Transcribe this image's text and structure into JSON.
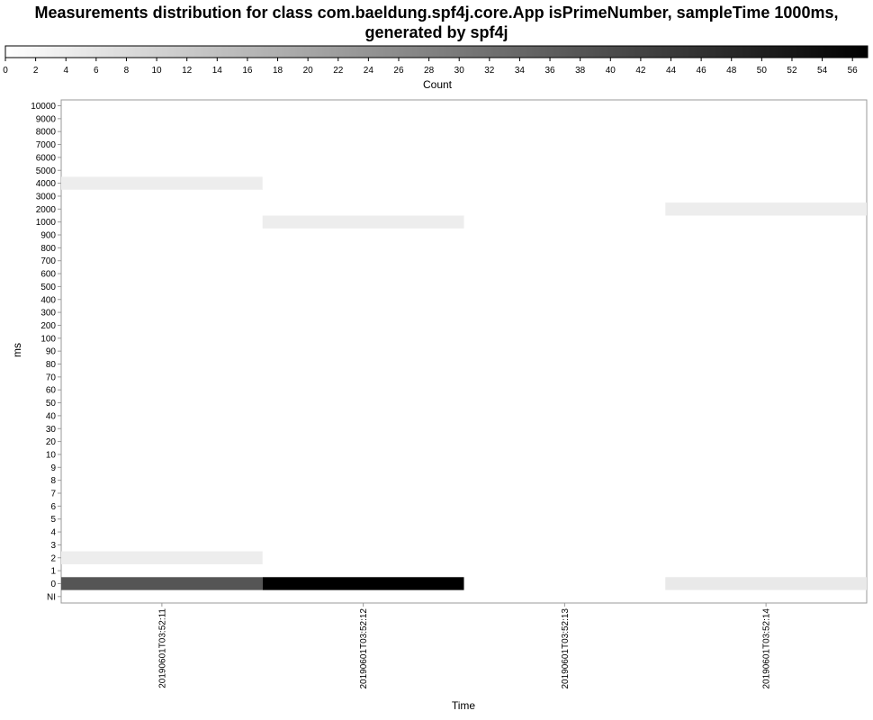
{
  "chart_data": {
    "type": "heatmap",
    "title_line1": "Measurements distribution for class com.baeldung.spf4j.core.App isPrimeNumber, sampleTime 1000ms,",
    "title_line2": "generated by spf4j",
    "xlabel": "Time",
    "ylabel": "ms",
    "colorbar": {
      "label": "Count",
      "min": 0,
      "max": 57,
      "ticks": [
        0,
        2,
        4,
        6,
        8,
        10,
        12,
        14,
        16,
        18,
        20,
        22,
        24,
        26,
        28,
        30,
        32,
        34,
        36,
        38,
        40,
        42,
        44,
        46,
        48,
        50,
        52,
        54,
        56
      ],
      "low_color": "#ffffff",
      "high_color": "#000000"
    },
    "x_categories": [
      "20190601T03:52:11",
      "20190601T03:52:12",
      "20190601T03:52:13",
      "20190601T03:52:14"
    ],
    "y_categories": [
      "NI",
      "0",
      "1",
      "2",
      "3",
      "4",
      "5",
      "6",
      "7",
      "8",
      "9",
      "10",
      "20",
      "30",
      "40",
      "50",
      "60",
      "70",
      "80",
      "90",
      "100",
      "200",
      "300",
      "400",
      "500",
      "600",
      "700",
      "800",
      "900",
      "1000",
      "2000",
      "3000",
      "4000",
      "5000",
      "6000",
      "7000",
      "8000",
      "9000",
      "10000"
    ],
    "cells": [
      {
        "x": "20190601T03:52:11",
        "y": "0",
        "count": 38
      },
      {
        "x": "20190601T03:52:11",
        "y": "2",
        "count": 4
      },
      {
        "x": "20190601T03:52:11",
        "y": "4000",
        "count": 4
      },
      {
        "x": "20190601T03:52:12",
        "y": "0",
        "count": 57
      },
      {
        "x": "20190601T03:52:12",
        "y": "1000",
        "count": 4
      },
      {
        "x": "20190601T03:52:14",
        "y": "0",
        "count": 5
      },
      {
        "x": "20190601T03:52:14",
        "y": "2000",
        "count": 4
      }
    ],
    "grid": false
  }
}
